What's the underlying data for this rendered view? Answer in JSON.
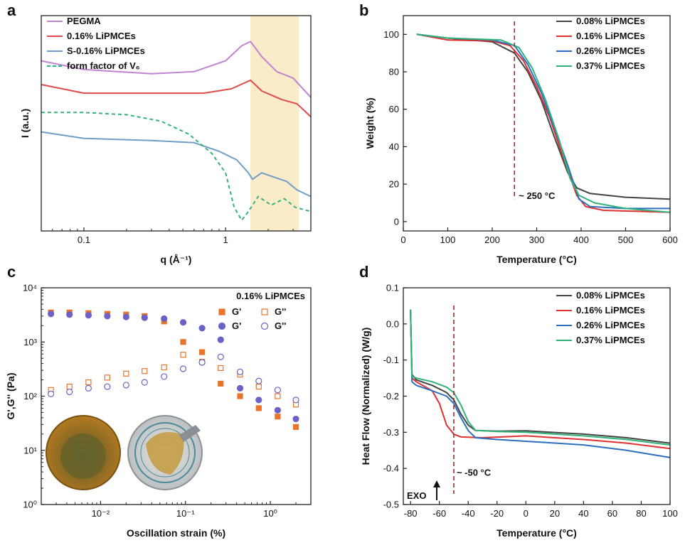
{
  "chart_data": [
    {
      "id": "a",
      "panel_label": "a",
      "type": "line",
      "xlabel": "q (Å⁻¹)",
      "ylabel": "I (a.u.)",
      "x_scale": "log",
      "xlim": [
        0.05,
        4
      ],
      "x_ticks": [
        0.1,
        1
      ],
      "x_tick_labels": [
        "0.1",
        "1"
      ],
      "y_ticks_shown": false,
      "highlight_band": {
        "x_range": [
          1.5,
          3.3
        ],
        "color": "#fbecc9"
      },
      "legend_position": "top-left",
      "series": [
        {
          "name": "PEGMA",
          "color": "#c083cf",
          "dash": false,
          "points": [
            [
              0.05,
              0.79
            ],
            [
              0.1,
              0.75
            ],
            [
              0.3,
              0.73
            ],
            [
              0.6,
              0.74
            ],
            [
              1.0,
              0.79
            ],
            [
              1.3,
              0.86
            ],
            [
              1.5,
              0.88
            ],
            [
              1.8,
              0.81
            ],
            [
              2.3,
              0.74
            ],
            [
              3.0,
              0.71
            ],
            [
              4.0,
              0.62
            ]
          ]
        },
        {
          "name": "0.16% LiPMCEs",
          "color": "#e04a4a",
          "dash": false,
          "points": [
            [
              0.05,
              0.68
            ],
            [
              0.1,
              0.64
            ],
            [
              0.3,
              0.64
            ],
            [
              0.7,
              0.64
            ],
            [
              1.1,
              0.66
            ],
            [
              1.5,
              0.7
            ],
            [
              1.8,
              0.65
            ],
            [
              2.5,
              0.61
            ],
            [
              3.2,
              0.59
            ],
            [
              4.0,
              0.53
            ]
          ]
        },
        {
          "name": "S-0.16% LiPMCEs",
          "color": "#6f9ec7",
          "dash": false,
          "points": [
            [
              0.05,
              0.46
            ],
            [
              0.1,
              0.43
            ],
            [
              0.3,
              0.42
            ],
            [
              0.6,
              0.41
            ],
            [
              0.9,
              0.37
            ],
            [
              1.2,
              0.33
            ],
            [
              1.45,
              0.27
            ],
            [
              1.55,
              0.24
            ],
            [
              1.8,
              0.27
            ],
            [
              2.2,
              0.25
            ],
            [
              2.7,
              0.23
            ],
            [
              3.2,
              0.19
            ],
            [
              4.0,
              0.16
            ]
          ]
        },
        {
          "name": "form factor of V₆",
          "color": "#33b27a",
          "dash": true,
          "points": [
            [
              0.05,
              0.55
            ],
            [
              0.1,
              0.55
            ],
            [
              0.2,
              0.54
            ],
            [
              0.35,
              0.51
            ],
            [
              0.55,
              0.45
            ],
            [
              0.8,
              0.36
            ],
            [
              1.0,
              0.27
            ],
            [
              1.15,
              0.11
            ],
            [
              1.3,
              0.05
            ],
            [
              1.45,
              0.09
            ],
            [
              1.7,
              0.16
            ],
            [
              2.1,
              0.12
            ],
            [
              2.6,
              0.15
            ],
            [
              3.1,
              0.11
            ],
            [
              4.0,
              0.09
            ]
          ]
        }
      ]
    },
    {
      "id": "b",
      "panel_label": "b",
      "type": "line",
      "xlabel": "Temperature (°C)",
      "ylabel": "Weight (%)",
      "xlim": [
        0,
        600
      ],
      "ylim": [
        -5,
        110
      ],
      "x_ticks": [
        0,
        100,
        200,
        300,
        400,
        500,
        600
      ],
      "y_ticks": [
        0,
        20,
        40,
        60,
        80,
        100
      ],
      "legend_position": "top-right",
      "vline": {
        "x": 250,
        "label": "~ 250 °C"
      },
      "series": [
        {
          "name": "0.08% LiPMCEs",
          "color": "#444444",
          "points": [
            [
              30,
              100
            ],
            [
              100,
              98
            ],
            [
              200,
              96
            ],
            [
              250,
              90
            ],
            [
              280,
              80
            ],
            [
              310,
              65
            ],
            [
              340,
              45
            ],
            [
              370,
              26
            ],
            [
              390,
              18
            ],
            [
              420,
              15
            ],
            [
              500,
              13
            ],
            [
              600,
              12
            ]
          ]
        },
        {
          "name": "0.16% LiPMCEs",
          "color": "#e03030",
          "points": [
            [
              30,
              100
            ],
            [
              100,
              97
            ],
            [
              200,
              96.5
            ],
            [
              240,
              94
            ],
            [
              270,
              86
            ],
            [
              300,
              72
            ],
            [
              330,
              55
            ],
            [
              360,
              34
            ],
            [
              390,
              14
            ],
            [
              410,
              8
            ],
            [
              450,
              6
            ],
            [
              600,
              5
            ]
          ]
        },
        {
          "name": "0.26% LiPMCEs",
          "color": "#2c6fbf",
          "points": [
            [
              30,
              100
            ],
            [
              100,
              98
            ],
            [
              200,
              97
            ],
            [
              250,
              94
            ],
            [
              280,
              84
            ],
            [
              310,
              69
            ],
            [
              340,
              50
            ],
            [
              370,
              30
            ],
            [
              395,
              12
            ],
            [
              420,
              8
            ],
            [
              500,
              7
            ],
            [
              600,
              7
            ]
          ]
        },
        {
          "name": "0.37% LiPMCEs",
          "color": "#2fb37a",
          "points": [
            [
              30,
              100
            ],
            [
              100,
              98
            ],
            [
              220,
              97
            ],
            [
              260,
              93
            ],
            [
              290,
              82
            ],
            [
              320,
              65
            ],
            [
              350,
              44
            ],
            [
              375,
              23
            ],
            [
              395,
              14
            ],
            [
              430,
              10
            ],
            [
              500,
              7
            ],
            [
              600,
              5
            ]
          ]
        }
      ]
    },
    {
      "id": "c",
      "panel_label": "c",
      "type": "scatter",
      "xlabel": "Oscillation strain (%)",
      "ylabel": "G',G'' (Pa)",
      "x_scale": "log",
      "y_scale": "log",
      "xlim": [
        0.002,
        3
      ],
      "ylim": [
        1,
        10000
      ],
      "x_ticks": [
        0.01,
        0.1,
        1
      ],
      "x_tick_labels": [
        "10⁻²",
        "10⁻¹",
        "10⁰"
      ],
      "y_ticks": [
        1,
        10,
        100,
        1000,
        10000
      ],
      "y_tick_labels": [
        "10⁰",
        "10¹",
        "10²",
        "10³",
        "10⁴"
      ],
      "annotation": "0.16% LiPMCEs",
      "legend_position": "top-right",
      "x": [
        0.0026,
        0.0043,
        0.0072,
        0.012,
        0.02,
        0.033,
        0.056,
        0.094,
        0.157,
        0.26,
        0.44,
        0.73,
        1.22,
        2.0
      ],
      "series": [
        {
          "name": "G'",
          "marker": "square-filled",
          "color": "#e8742a",
          "values": [
            3500,
            3500,
            3400,
            3300,
            3200,
            3000,
            2400,
            1000,
            650,
            170,
            100,
            60,
            42,
            27
          ]
        },
        {
          "name": "G''",
          "marker": "square-open",
          "color": "#e8742a",
          "values": [
            130,
            150,
            180,
            220,
            260,
            290,
            340,
            580,
            430,
            330,
            250,
            150,
            100,
            70
          ]
        },
        {
          "name": "G'",
          "marker": "circle-filled",
          "color": "#6b62c7",
          "values": [
            3300,
            3200,
            3100,
            3000,
            2900,
            2800,
            2700,
            2300,
            1800,
            1100,
            140,
            85,
            55,
            38
          ]
        },
        {
          "name": "G''",
          "marker": "circle-open",
          "color": "#6b62c7",
          "values": [
            110,
            120,
            140,
            150,
            160,
            180,
            230,
            320,
            420,
            530,
            280,
            190,
            130,
            85
          ]
        }
      ]
    },
    {
      "id": "d",
      "panel_label": "d",
      "type": "line",
      "xlabel": "Temperature (°C)",
      "ylabel": "Heat Flow (Normalized) (W/g)",
      "xlim": [
        -85,
        100
      ],
      "ylim": [
        -0.5,
        0.1
      ],
      "x_ticks": [
        -80,
        -60,
        -40,
        -20,
        0,
        20,
        40,
        60,
        80,
        100
      ],
      "y_ticks": [
        -0.5,
        -0.4,
        -0.3,
        -0.2,
        -0.1,
        0.0,
        0.1
      ],
      "y_tick_labels": [
        "-0.5",
        "-0.4",
        "-0.3",
        "-0.2",
        "-0.1",
        "0.0",
        "0.1"
      ],
      "legend_position": "top-right",
      "vline": {
        "x": -50,
        "label": "~ -50 °C"
      },
      "exo_label": "EXO",
      "series": [
        {
          "name": "0.08% LiPMCEs",
          "color": "#444444",
          "points": [
            [
              -80,
              0.04
            ],
            [
              -79,
              -0.14
            ],
            [
              -76,
              -0.155
            ],
            [
              -65,
              -0.17
            ],
            [
              -55,
              -0.19
            ],
            [
              -50,
              -0.21
            ],
            [
              -45,
              -0.25
            ],
            [
              -40,
              -0.28
            ],
            [
              -35,
              -0.295
            ],
            [
              -20,
              -0.297
            ],
            [
              0,
              -0.296
            ],
            [
              40,
              -0.305
            ],
            [
              70,
              -0.315
            ],
            [
              100,
              -0.33
            ]
          ]
        },
        {
          "name": "0.16% LiPMCEs",
          "color": "#e03030",
          "points": [
            [
              -80,
              0.04
            ],
            [
              -79,
              -0.15
            ],
            [
              -76,
              -0.16
            ],
            [
              -65,
              -0.185
            ],
            [
              -60,
              -0.22
            ],
            [
              -55,
              -0.28
            ],
            [
              -50,
              -0.305
            ],
            [
              -45,
              -0.313
            ],
            [
              -30,
              -0.315
            ],
            [
              0,
              -0.31
            ],
            [
              40,
              -0.32
            ],
            [
              70,
              -0.33
            ],
            [
              100,
              -0.345
            ]
          ]
        },
        {
          "name": "0.26% LiPMCEs",
          "color": "#2c6fbf",
          "points": [
            [
              -80,
              0.04
            ],
            [
              -79,
              -0.16
            ],
            [
              -76,
              -0.17
            ],
            [
              -65,
              -0.185
            ],
            [
              -55,
              -0.2
            ],
            [
              -50,
              -0.22
            ],
            [
              -45,
              -0.26
            ],
            [
              -40,
              -0.295
            ],
            [
              -35,
              -0.315
            ],
            [
              -20,
              -0.32
            ],
            [
              0,
              -0.325
            ],
            [
              40,
              -0.335
            ],
            [
              70,
              -0.35
            ],
            [
              100,
              -0.37
            ]
          ]
        },
        {
          "name": "0.37% LiPMCEs",
          "color": "#2fb37a",
          "points": [
            [
              -80,
              0.04
            ],
            [
              -79,
              -0.145
            ],
            [
              -76,
              -0.15
            ],
            [
              -65,
              -0.16
            ],
            [
              -55,
              -0.175
            ],
            [
              -50,
              -0.19
            ],
            [
              -45,
              -0.225
            ],
            [
              -40,
              -0.27
            ],
            [
              -35,
              -0.295
            ],
            [
              -20,
              -0.298
            ],
            [
              0,
              -0.3
            ],
            [
              40,
              -0.31
            ],
            [
              70,
              -0.32
            ],
            [
              100,
              -0.335
            ]
          ]
        }
      ]
    }
  ]
}
